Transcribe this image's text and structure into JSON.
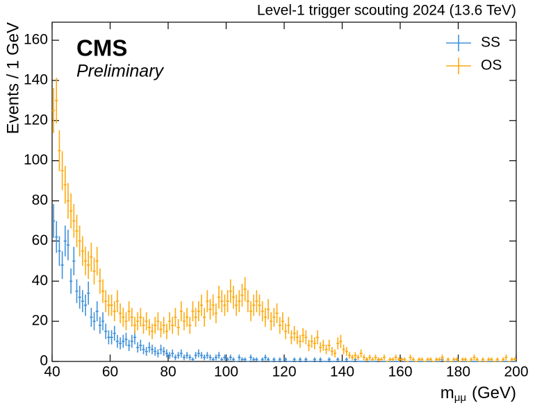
{
  "chart_data": {
    "type": "histogram",
    "title": "Level-1 trigger scouting 2024  (13.6 TeV)",
    "experiment": "CMS",
    "status": "Preliminary",
    "xlabel": "m",
    "xlabel_sub": "μμ",
    "xlabel_unit": "(GeV)",
    "ylabel": "Events / 1 GeV",
    "xlim": [
      40,
      200
    ],
    "ylim": [
      0,
      169
    ],
    "xticks": [
      40,
      60,
      80,
      100,
      120,
      140,
      160,
      180,
      200
    ],
    "yticks": [
      0,
      20,
      40,
      60,
      80,
      100,
      120,
      140,
      160
    ],
    "legend": "upper right",
    "bins": [
      40,
      41,
      42,
      43,
      44,
      45,
      46,
      47,
      48,
      49,
      50,
      51,
      52,
      53,
      54,
      55,
      56,
      57,
      58,
      59,
      60,
      61,
      62,
      63,
      64,
      65,
      66,
      67,
      68,
      69,
      70,
      71,
      72,
      73,
      74,
      75,
      76,
      77,
      78,
      79,
      80,
      81,
      82,
      83,
      84,
      85,
      86,
      87,
      88,
      89,
      90,
      91,
      92,
      93,
      94,
      95,
      96,
      97,
      98,
      99,
      100,
      101,
      102,
      103,
      104,
      105,
      106,
      107,
      108,
      109,
      110,
      111,
      112,
      113,
      114,
      115,
      116,
      117,
      118,
      119,
      120,
      121,
      122,
      123,
      124,
      125,
      126,
      127,
      128,
      129,
      130,
      131,
      132,
      133,
      134,
      135,
      136,
      137,
      138,
      139,
      140,
      141,
      142,
      143,
      144,
      145,
      146,
      147,
      148,
      149,
      150,
      151,
      152,
      153,
      154,
      155,
      156,
      157,
      158,
      159,
      160,
      161,
      162,
      163,
      164,
      165,
      166,
      167,
      168,
      169,
      170,
      171,
      172,
      173,
      174,
      175,
      176,
      177,
      178,
      179,
      180,
      181,
      182,
      183,
      184,
      185,
      186,
      187,
      188,
      189,
      190,
      191,
      192,
      193,
      194,
      195,
      196,
      197,
      198,
      199,
      200
    ],
    "series": [
      {
        "name": "SS",
        "color": "#3f90da",
        "values": [
          70,
          62,
          55,
          48,
          60,
          58,
          40,
          50,
          35,
          32,
          30,
          28,
          34,
          22,
          20,
          25,
          18,
          20,
          15,
          12,
          12,
          14,
          10,
          9,
          10,
          11,
          8,
          10,
          12,
          7,
          8,
          6,
          5,
          7,
          6,
          5,
          4,
          6,
          5,
          4,
          3,
          4,
          2,
          3,
          4,
          2,
          3,
          2,
          1,
          3,
          4,
          3,
          2,
          3,
          2,
          1,
          2,
          3,
          1,
          2,
          1,
          2,
          1,
          0,
          2,
          1,
          1,
          0,
          2,
          1,
          1,
          0,
          1,
          2,
          1,
          0,
          1,
          0,
          1,
          0,
          1,
          0,
          0,
          1,
          0,
          1,
          0,
          1,
          0,
          0,
          1,
          0,
          1,
          0,
          0,
          1,
          0,
          0,
          1,
          0,
          0,
          1,
          0,
          0,
          1,
          0,
          0,
          0,
          1,
          0,
          0,
          0,
          1,
          0,
          0,
          0,
          0,
          0,
          0,
          0,
          1,
          0,
          0,
          0,
          0,
          0,
          0,
          0,
          0,
          0,
          0,
          0,
          0,
          0,
          1,
          0,
          0,
          0,
          0,
          0,
          0,
          0,
          0,
          0,
          0,
          0,
          0,
          0,
          0,
          0,
          0,
          0,
          0,
          0,
          0,
          0,
          0,
          0,
          0,
          0
        ],
        "errors": [
          8.4,
          7.9,
          7.4,
          6.9,
          7.7,
          7.6,
          6.3,
          7.1,
          5.9,
          5.7,
          5.5,
          5.3,
          5.8,
          4.7,
          4.5,
          5,
          4.2,
          4.5,
          3.9,
          3.5,
          3.5,
          3.7,
          3.2,
          3,
          3.2,
          3.3,
          2.8,
          3.2,
          3.5,
          2.6,
          2.8,
          2.4,
          2.2,
          2.6,
          2.4,
          2.2,
          2,
          2.4,
          2.2,
          2,
          1.7,
          2,
          1.4,
          1.7,
          2,
          1.4,
          1.7,
          1.4,
          1,
          1.7,
          2,
          1.7,
          1.4,
          1.7,
          1.4,
          1,
          1.4,
          1.7,
          1,
          1.4,
          1,
          1.4,
          1,
          0,
          1.4,
          1,
          1,
          0,
          1.4,
          1,
          1,
          0,
          1,
          1.4,
          1,
          0,
          1,
          0,
          1,
          0,
          1,
          0,
          0,
          1,
          0,
          1,
          0,
          1,
          0,
          0,
          1,
          0,
          1,
          0,
          0,
          1,
          0,
          0,
          1,
          0,
          0,
          1,
          0,
          0,
          1,
          0,
          0,
          0,
          1,
          0,
          0,
          0,
          1,
          0,
          0,
          0,
          0,
          0,
          0,
          0,
          1,
          0,
          0,
          0,
          0,
          0,
          0,
          0,
          0,
          0,
          0,
          0,
          0,
          0,
          1,
          0,
          0,
          0,
          0,
          0,
          0,
          0,
          0,
          0,
          0,
          0,
          0,
          0,
          0,
          0,
          0,
          0,
          0,
          0,
          0,
          0,
          0,
          0,
          0,
          0
        ]
      },
      {
        "name": "OS",
        "color": "#ffa90e",
        "values": [
          125,
          130,
          105,
          95,
          88,
          80,
          75,
          70,
          65,
          60,
          55,
          50,
          48,
          52,
          45,
          50,
          40,
          35,
          30,
          28,
          28,
          25,
          30,
          24,
          22,
          20,
          25,
          22,
          18,
          20,
          22,
          18,
          20,
          17,
          15,
          18,
          20,
          16,
          18,
          15,
          20,
          18,
          22,
          17,
          25,
          20,
          22,
          18,
          25,
          22,
          25,
          28,
          22,
          30,
          26,
          28,
          24,
          32,
          30,
          28,
          30,
          35,
          32,
          28,
          30,
          33,
          36,
          30,
          25,
          28,
          30,
          28,
          25,
          22,
          26,
          20,
          22,
          24,
          18,
          20,
          15,
          18,
          12,
          14,
          12,
          10,
          13,
          12,
          8,
          10,
          9,
          12,
          7,
          8,
          6,
          8,
          5,
          4,
          9,
          10,
          6,
          5,
          3,
          2,
          3,
          2,
          4,
          2,
          1,
          2,
          1,
          2,
          1,
          1,
          2,
          0,
          1,
          1,
          2,
          1,
          1,
          1,
          0,
          2,
          1,
          0,
          1,
          1,
          0,
          1,
          1,
          0,
          1,
          1,
          2,
          0,
          1,
          0,
          1,
          1,
          0,
          1,
          1,
          0,
          1,
          2,
          1,
          0,
          1,
          0,
          1,
          1,
          0,
          1,
          0,
          1,
          2,
          0,
          1,
          1
        ],
        "errors": [
          11.2,
          11.4,
          10.2,
          9.7,
          9.4,
          8.9,
          8.7,
          8.4,
          8.1,
          7.7,
          7.4,
          7.1,
          6.9,
          7.2,
          6.7,
          7.1,
          6.3,
          5.9,
          5.5,
          5.3,
          5.3,
          5,
          5.5,
          4.9,
          4.7,
          4.5,
          5,
          4.7,
          4.2,
          4.5,
          4.7,
          4.2,
          4.5,
          4.1,
          3.9,
          4.2,
          4.5,
          4,
          4.2,
          3.9,
          4.5,
          4.2,
          4.7,
          4.1,
          5,
          4.5,
          4.7,
          4.2,
          5,
          4.7,
          5,
          5.3,
          4.7,
          5.5,
          5.1,
          5.3,
          4.9,
          5.7,
          5.5,
          5.3,
          5.5,
          5.9,
          5.7,
          5.3,
          5.5,
          5.7,
          6,
          5.5,
          5,
          5.3,
          5.5,
          5.3,
          5,
          4.7,
          5.1,
          4.5,
          4.7,
          4.9,
          4.2,
          4.5,
          3.9,
          4.2,
          3.5,
          3.7,
          3.5,
          3.2,
          3.6,
          3.5,
          2.8,
          3.2,
          3,
          3.5,
          2.6,
          2.8,
          2.4,
          2.8,
          2.2,
          2,
          3,
          3.2,
          2.4,
          2.2,
          1.7,
          1.4,
          1.7,
          1.4,
          2,
          1.4,
          1,
          1.4,
          1,
          1.4,
          1,
          1,
          1.4,
          0,
          1,
          1,
          1.4,
          1,
          1,
          1,
          0,
          1.4,
          1,
          0,
          1,
          1,
          0,
          1,
          1,
          0,
          1,
          1,
          1.4,
          0,
          1,
          0,
          1,
          1,
          0,
          1,
          1,
          0,
          1,
          1.4,
          1,
          0,
          1,
          0,
          1,
          1,
          0,
          1,
          0,
          1,
          1.4,
          0,
          1,
          1
        ]
      }
    ]
  }
}
